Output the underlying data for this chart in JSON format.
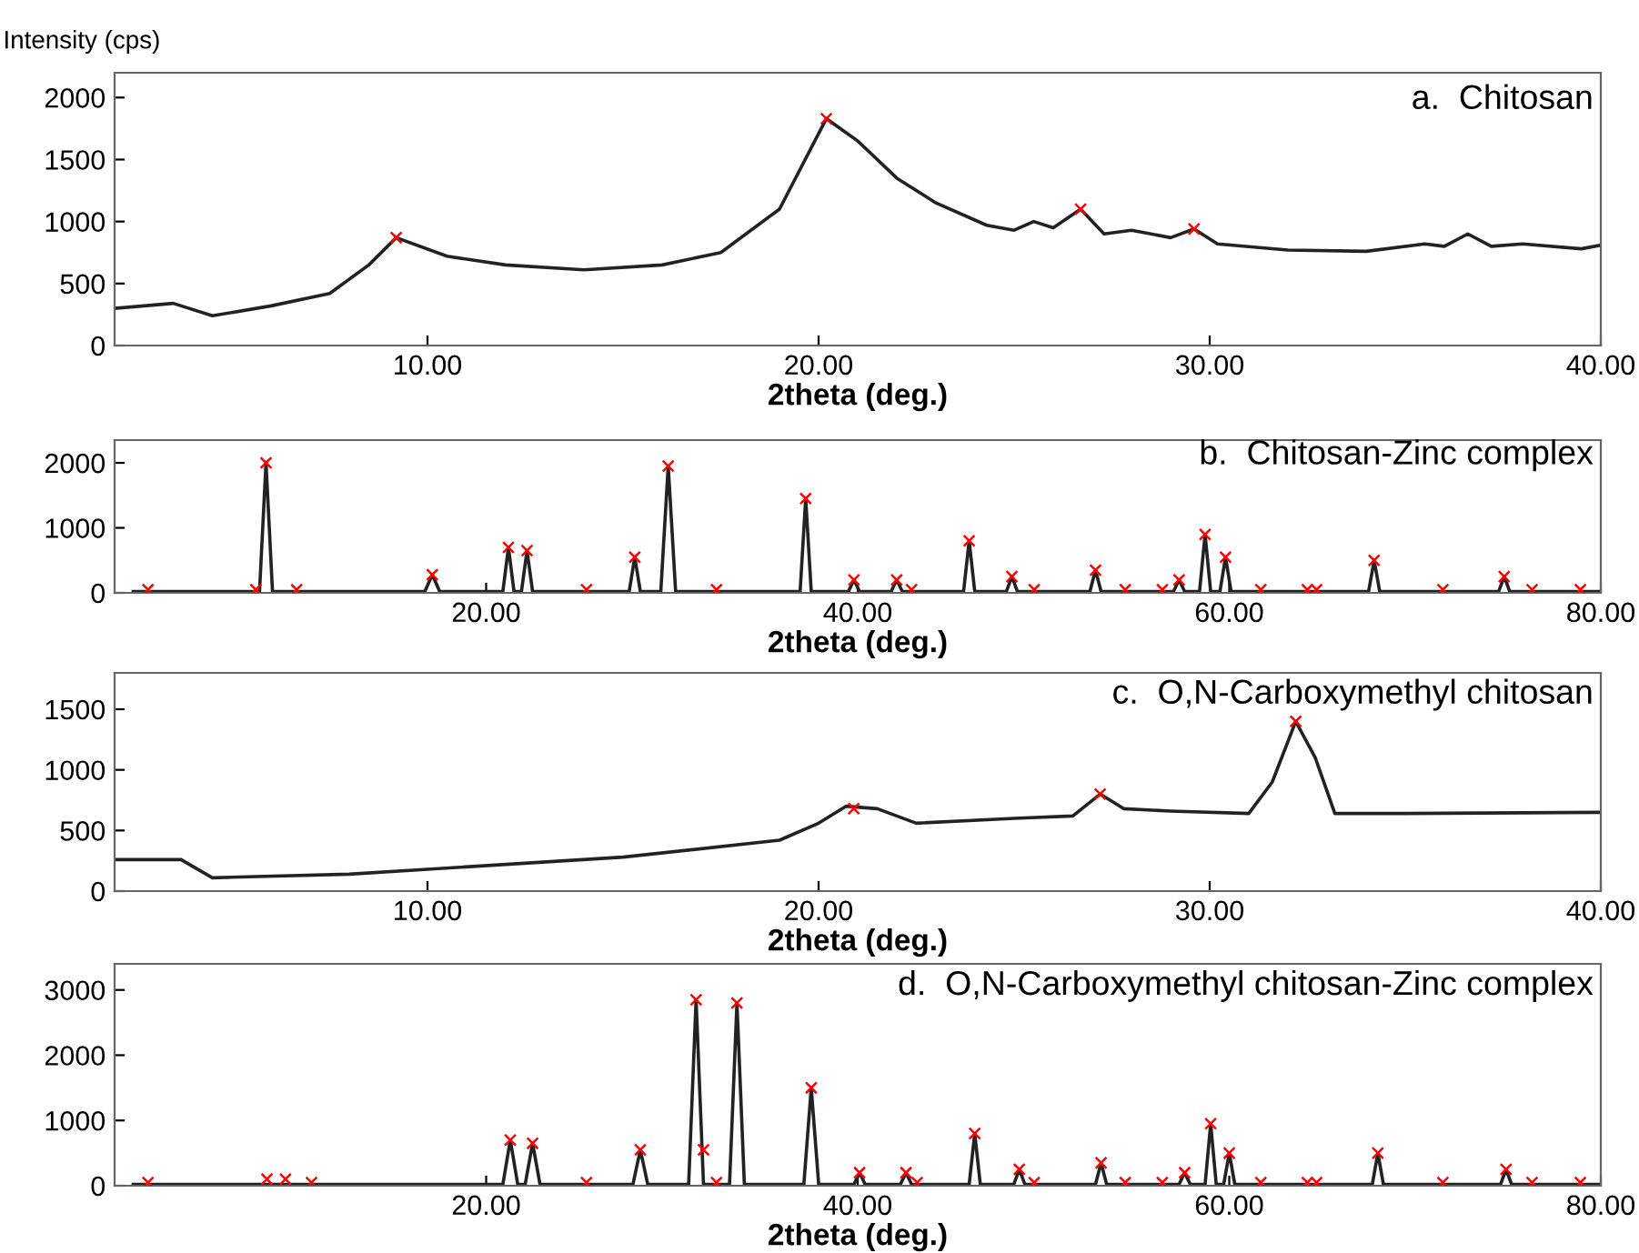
{
  "chart_data": [
    {
      "type": "line",
      "title": "a.  Chitosan",
      "xlabel": "2theta (deg.)",
      "ylabel": "Intensity (cps)",
      "xlim": [
        2,
        40
      ],
      "ylim": [
        0,
        2200
      ],
      "xticks": [
        {
          "value": 10,
          "label": "10.00"
        },
        {
          "value": 20,
          "label": "20.00"
        },
        {
          "value": 30,
          "label": "30.00"
        },
        {
          "value": 40,
          "label": "40.00"
        }
      ],
      "yticks": [
        0,
        500,
        1000,
        1500,
        2000
      ],
      "series": [
        {
          "color": "#222222",
          "x": [
            2,
            3.5,
            4.5,
            6,
            7.5,
            8.5,
            9.2,
            10.5,
            12,
            14,
            16,
            17.5,
            19,
            20.2,
            21,
            22,
            23,
            24.3,
            25,
            25.5,
            26,
            26.7,
            27.3,
            28,
            29,
            29.6,
            30.2,
            32,
            34,
            35.5,
            36,
            36.6,
            37.2,
            38,
            39.5,
            40
          ],
          "values": [
            300,
            340,
            240,
            320,
            420,
            650,
            870,
            720,
            650,
            610,
            650,
            750,
            1100,
            1830,
            1650,
            1350,
            1150,
            970,
            930,
            1000,
            950,
            1100,
            900,
            930,
            870,
            940,
            820,
            770,
            760,
            820,
            800,
            900,
            800,
            820,
            780,
            810
          ]
        },
        {
          "type": "scatter",
          "color": "#ff0000",
          "marker": "cross",
          "x": [
            9.2,
            20.2,
            26.7,
            29.6
          ],
          "values": [
            870,
            1830,
            1100,
            940
          ]
        }
      ]
    },
    {
      "type": "line",
      "title": "b.  Chitosan-Zinc complex",
      "xlabel": "2theta (deg.)",
      "xlim": [
        0,
        80
      ],
      "ylim": [
        0,
        2350
      ],
      "xticks": [
        {
          "value": 20,
          "label": "20.00"
        },
        {
          "value": 40,
          "label": "40.00"
        },
        {
          "value": 60,
          "label": "60.00"
        },
        {
          "value": 80,
          "label": "80.00"
        }
      ],
      "yticks": [
        0,
        1000,
        2000
      ],
      "series": [
        {
          "color": "#222222",
          "x": [
            1,
            7.8,
            8.15,
            8.5,
            16.7,
            17.1,
            17.5,
            20.9,
            21.2,
            21.5,
            21.9,
            22.2,
            22.5,
            27.7,
            28.0,
            28.3,
            29.4,
            29.8,
            30.2,
            36.9,
            37.2,
            37.5,
            39.5,
            39.8,
            40.1,
            41.8,
            42.1,
            42.4,
            45.7,
            46.0,
            46.3,
            48.0,
            48.3,
            48.6,
            52.5,
            52.8,
            53.1,
            57.0,
            57.3,
            57.6,
            58.4,
            58.7,
            59.0,
            59.5,
            59.8,
            60.1,
            67.5,
            67.8,
            68.1,
            74.5,
            74.8,
            75.1,
            80
          ],
          "values": [
            20,
            20,
            2000,
            20,
            20,
            280,
            20,
            20,
            700,
            20,
            20,
            650,
            20,
            20,
            550,
            20,
            20,
            1950,
            20,
            20,
            1450,
            20,
            20,
            200,
            20,
            20,
            200,
            20,
            20,
            800,
            20,
            20,
            250,
            20,
            20,
            350,
            20,
            20,
            200,
            20,
            20,
            900,
            20,
            20,
            550,
            20,
            20,
            500,
            20,
            20,
            250,
            20,
            20
          ]
        },
        {
          "type": "scatter",
          "color": "#ff0000",
          "marker": "cross",
          "x": [
            8.15,
            17.1,
            21.2,
            22.2,
            28.0,
            29.8,
            37.2,
            39.8,
            42.1,
            46.0,
            48.3,
            52.8,
            57.3,
            58.7,
            59.8,
            67.8,
            74.8,
            1.8,
            7.6,
            9.8,
            25.4,
            32.4,
            42.9,
            49.5,
            54.4,
            56.4,
            61.7,
            64.2,
            64.7,
            71.5,
            76.3,
            78.9
          ],
          "values": [
            2000,
            280,
            700,
            650,
            550,
            1950,
            1450,
            200,
            200,
            800,
            250,
            350,
            200,
            900,
            550,
            500,
            250,
            50,
            50,
            50,
            50,
            50,
            50,
            50,
            50,
            50,
            50,
            50,
            50,
            50,
            50,
            50
          ]
        }
      ]
    },
    {
      "type": "line",
      "title": "c.  O,N-Carboxymethyl chitosan",
      "xlabel": "2theta (deg.)",
      "xlim": [
        2,
        40
      ],
      "ylim": [
        0,
        1800
      ],
      "xticks": [
        {
          "value": 10,
          "label": "10.00"
        },
        {
          "value": 20,
          "label": "20.00"
        },
        {
          "value": 30,
          "label": "30.00"
        },
        {
          "value": 40,
          "label": "40.00"
        }
      ],
      "yticks": [
        0,
        500,
        1000,
        1500
      ],
      "series": [
        {
          "color": "#222222",
          "x": [
            2,
            3.7,
            4.5,
            8,
            10,
            15,
            19,
            20,
            20.7,
            21.5,
            22.5,
            25,
            26.5,
            27.2,
            27.8,
            29,
            31,
            31.6,
            32.2,
            32.7,
            33.2,
            35,
            40
          ],
          "values": [
            260,
            260,
            110,
            140,
            180,
            280,
            420,
            560,
            700,
            680,
            560,
            600,
            620,
            800,
            680,
            660,
            640,
            900,
            1400,
            1100,
            640,
            640,
            650
          ]
        },
        {
          "type": "scatter",
          "color": "#ff0000",
          "marker": "cross",
          "x": [
            20.9,
            27.2,
            32.2
          ],
          "values": [
            680,
            800,
            1400
          ]
        }
      ]
    },
    {
      "type": "line",
      "title": "d.  O,N-Carboxymethyl chitosan-Zinc complex",
      "xlabel": "2theta (deg.)",
      "xlim": [
        0,
        80
      ],
      "ylim": [
        0,
        3400
      ],
      "xticks": [
        {
          "value": 20,
          "label": "20.00"
        },
        {
          "value": 40,
          "label": "40.00"
        },
        {
          "value": 60,
          "label": "60.00"
        },
        {
          "value": 80,
          "label": "80.00"
        }
      ],
      "yticks": [
        0,
        1000,
        2000,
        3000
      ],
      "series": [
        {
          "color": "#222222",
          "x": [
            1,
            20.9,
            21.3,
            21.7,
            22.1,
            22.5,
            22.9,
            27.9,
            28.3,
            28.7,
            30.9,
            31.3,
            31.7,
            33.1,
            33.5,
            33.9,
            37.1,
            37.5,
            37.9,
            39.8,
            40.1,
            40.4,
            42.3,
            42.6,
            42.9,
            46.0,
            46.3,
            46.6,
            48.4,
            48.7,
            49.0,
            52.8,
            53.1,
            53.4,
            57.3,
            57.6,
            57.9,
            58.7,
            59.0,
            59.3,
            59.7,
            60.0,
            60.3,
            67.7,
            68.0,
            68.3,
            74.6,
            74.9,
            75.2,
            80
          ],
          "values": [
            20,
            20,
            700,
            20,
            20,
            650,
            20,
            20,
            550,
            20,
            20,
            2850,
            20,
            20,
            2800,
            20,
            20,
            1500,
            20,
            20,
            200,
            20,
            20,
            200,
            20,
            20,
            800,
            20,
            20,
            250,
            20,
            20,
            350,
            20,
            20,
            200,
            20,
            20,
            950,
            20,
            20,
            500,
            20,
            20,
            500,
            20,
            20,
            250,
            20,
            20
          ]
        },
        {
          "type": "scatter",
          "color": "#ff0000",
          "marker": "cross",
          "x": [
            21.3,
            22.5,
            28.3,
            31.3,
            31.7,
            33.5,
            37.5,
            40.1,
            42.6,
            46.3,
            48.7,
            53.1,
            57.6,
            59.0,
            60.0,
            68.0,
            74.9,
            1.8,
            8.2,
            9.2,
            10.6,
            25.4,
            32.4,
            43.2,
            49.5,
            54.4,
            56.4,
            61.7,
            64.2,
            64.7,
            71.5,
            76.3,
            78.9
          ],
          "values": [
            700,
            650,
            550,
            2850,
            550,
            2800,
            1500,
            200,
            200,
            800,
            250,
            350,
            200,
            950,
            500,
            500,
            250,
            50,
            100,
            100,
            50,
            50,
            50,
            50,
            50,
            50,
            50,
            50,
            50,
            50,
            50,
            50,
            50
          ]
        }
      ]
    }
  ]
}
